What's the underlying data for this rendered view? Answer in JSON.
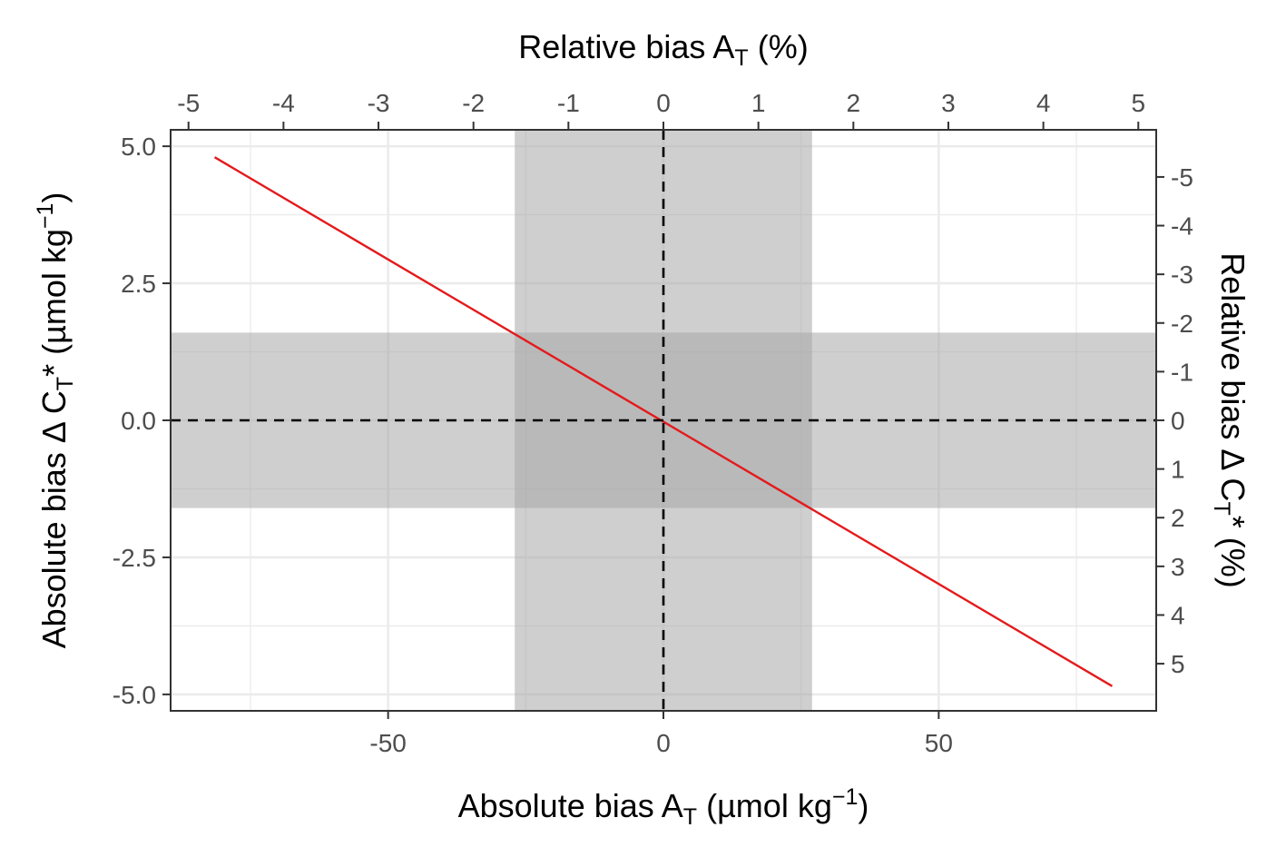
{
  "chart_data": {
    "type": "line",
    "x_bottom_title": {
      "main": "Absolute bias A",
      "sub": "T",
      "unit_open": " (µmol kg",
      "sup": "−1",
      "unit_close": ")"
    },
    "x_top_title": {
      "main": "Relative bias A",
      "sub": "T",
      "rest": " (%)"
    },
    "y_left_title": {
      "main": "Absolute bias Δ C",
      "sub": "T",
      "star": "*",
      "unit_open": " (µmol kg",
      "sup": "−1",
      "unit_close": ")"
    },
    "y_right_title": {
      "main": "Relative bias Δ C",
      "sub": "T",
      "star": "*",
      "rest": " (%)"
    },
    "xlim": [
      -89.5,
      89.5
    ],
    "ylim": [
      -5.3,
      5.3
    ],
    "x_ticks": [
      -50,
      0,
      50
    ],
    "x_tick_labels": [
      "-50",
      "0",
      "50"
    ],
    "x_minor": [
      -75,
      -25,
      25,
      75
    ],
    "y_ticks": [
      5.0,
      2.5,
      0.0,
      -2.5,
      -5.0
    ],
    "y_tick_labels": [
      "5.0",
      "2.5",
      "0.0",
      "-2.5",
      "-5.0"
    ],
    "y_minor": [
      3.75,
      1.25,
      -1.25,
      -3.75
    ],
    "top_axis": {
      "ticks": [
        -5,
        -4,
        -3,
        -2,
        -1,
        0,
        1,
        2,
        3,
        4,
        5
      ],
      "labels": [
        "-5",
        "-4",
        "-3",
        "-2",
        "-1",
        "0",
        "1",
        "2",
        "3",
        "4",
        "5"
      ],
      "x_per_unit": 17.25
    },
    "right_axis": {
      "ticks": [
        -5,
        -4,
        -3,
        -2,
        -1,
        0,
        1,
        2,
        3,
        4,
        5
      ],
      "labels": [
        "-5",
        "-4",
        "-3",
        "-2",
        "-1",
        "0",
        "1",
        "2",
        "3",
        "4",
        "5"
      ],
      "y_per_unit": -0.888
    },
    "bands": [
      {
        "axis": "x",
        "from": -27,
        "to": 27
      },
      {
        "axis": "y",
        "from": -1.6,
        "to": 1.6
      }
    ],
    "reference_lines": [
      {
        "axis": "x",
        "value": 0,
        "style": "dashed"
      },
      {
        "axis": "y",
        "value": 0,
        "style": "dashed"
      }
    ],
    "series": [
      {
        "x": [
          -81.5,
          81.5
        ],
        "y": [
          4.8,
          -4.85
        ],
        "color": "#e41a1c"
      }
    ],
    "colors": {
      "band": "#a8a8a8",
      "line": "#e41a1c",
      "grid": "#ebebeb",
      "panel_border": "#333333",
      "tick_text": "#4d4d4d"
    },
    "grid": true,
    "legend": "none"
  }
}
